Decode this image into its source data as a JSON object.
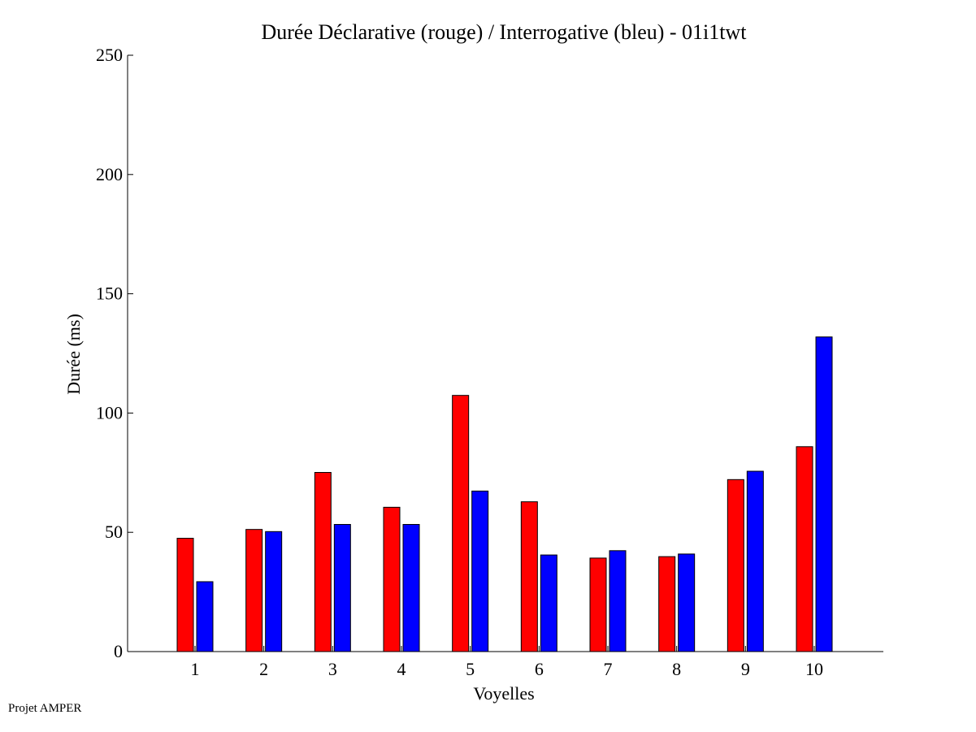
{
  "chart_data": {
    "type": "bar",
    "title": "Durée Déclarative (rouge) / Interrogative (bleu) - 01i1twt",
    "xlabel": "Voyelles",
    "ylabel": "Durée (ms)",
    "ylim": [
      0,
      250
    ],
    "yticks": [
      0,
      50,
      100,
      150,
      200,
      250
    ],
    "categories": [
      "1",
      "2",
      "3",
      "4",
      "5",
      "6",
      "7",
      "8",
      "9",
      "10"
    ],
    "series": [
      {
        "color": "#ff0000",
        "values": [
          47.5,
          51.2,
          75.1,
          60.5,
          107.4,
          62.8,
          39.2,
          39.8,
          72.1,
          85.9
        ]
      },
      {
        "color": "#0000ff",
        "values": [
          29.3,
          50.3,
          53.3,
          53.3,
          67.3,
          40.5,
          42.3,
          40.9,
          75.6,
          131.9
        ]
      }
    ],
    "grid": false
  },
  "footer": {
    "text": "Projet AMPER"
  }
}
